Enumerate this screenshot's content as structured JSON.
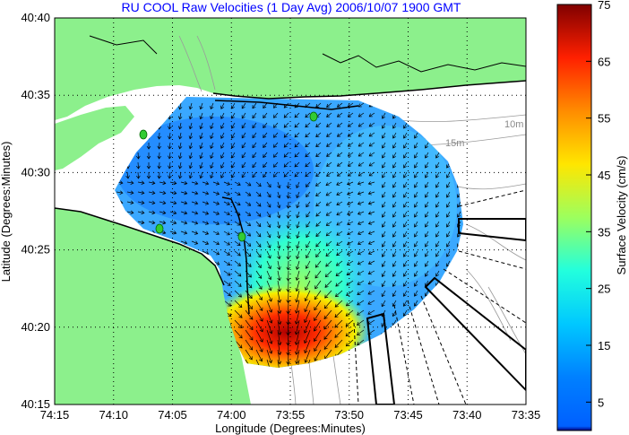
{
  "chart_data": {
    "type": "heatmap",
    "title": "RU COOL Raw Velocities (1 Day Avg) 2006/10/07 1900 GMT",
    "xlabel": "Longitude (Degrees:Minutes)",
    "ylabel": "Latitude (Degrees:Minutes)",
    "x_ticks": [
      "74:15",
      "74:10",
      "74:05",
      "74:00",
      "73:55",
      "73:50",
      "73:45",
      "73:40",
      "73:35"
    ],
    "y_ticks": [
      "40:15",
      "40:20",
      "40:25",
      "40:30",
      "40:35",
      "40:40"
    ],
    "grid": true,
    "colorbar": {
      "label": "Surface Velocity (cm/s)",
      "ticks": [
        5,
        15,
        25,
        35,
        45,
        55,
        65,
        75
      ],
      "range": [
        0,
        75
      ],
      "colormap": "jet"
    },
    "depth_labels": [
      "10m",
      "15m"
    ],
    "colors": {
      "land": "#8cf08c",
      "water": "#ffffff",
      "title": "#0000ff",
      "vectors": "#000000",
      "station": "#33cc33"
    }
  }
}
